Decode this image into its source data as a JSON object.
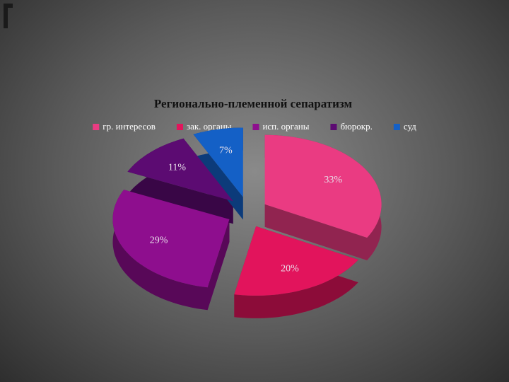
{
  "chart_data": {
    "type": "pie",
    "title": "Регионально-племенной сепаратизм",
    "categories": [
      "гр. интересов",
      "зак. органы",
      "исп. органы",
      "бюрокр.",
      "суд"
    ],
    "values": [
      33,
      20,
      29,
      11,
      7
    ],
    "value_labels": [
      "33%",
      "20%",
      "29%",
      "11%",
      "7%"
    ],
    "colors": [
      "#ea3b82",
      "#e2145c",
      "#8e0e8e",
      "#5c0b72",
      "#1460c6"
    ],
    "legend": "top"
  }
}
